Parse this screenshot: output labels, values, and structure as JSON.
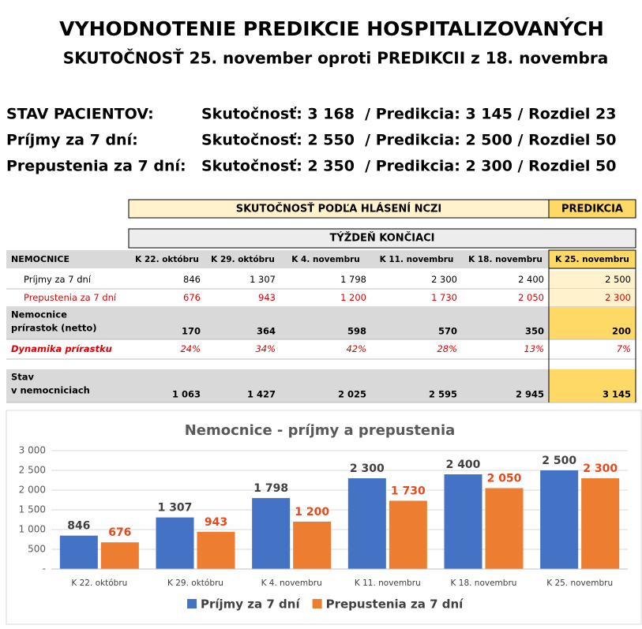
{
  "header": {
    "title": "VYHODNOTENIE PREDIKCIE HOSPITALIZOVANÝCH",
    "subtitle": "SKUTOČNOSŤ 25. november oproti PREDIKCII z 18. novembra"
  },
  "summary": [
    {
      "label": "STAV PACIENTOV:",
      "text": "Skutočnosť: 3 168  / Predikcia: 3 145 / Rozdiel 23"
    },
    {
      "label": "Príjmy za 7 dní:",
      "text": "Skutočnosť: 2 550  / Predikcia: 2 500 / Rozdiel 50"
    },
    {
      "label": "Prepustenia za 7 dní:",
      "text": "Skutočnosť: 2 350  / Predikcia: 2 300 / Rozdiel 50"
    }
  ],
  "table": {
    "group_header": "SKUTOČNOSŤ PODĽA HLÁSENÍ NCZI",
    "prediction_header": "PREDIKCIA",
    "week_header": "TÝŽDEŇ KONČIACI",
    "columns": [
      "NEMOCNICE",
      "K 22. októbru",
      "K 29. októbru",
      "K 4. novembru",
      "K 11. novembru",
      "K 18. novembru",
      "K 25. novembru"
    ],
    "rows": [
      {
        "label": [
          "Príjmy za 7 dní"
        ],
        "cells": [
          "846",
          "1 307",
          "1 798",
          "2 300",
          "2 400",
          "2 500"
        ]
      },
      {
        "label": [
          "Prepustenia za 7 dní"
        ],
        "cells": [
          "676",
          "943",
          "1 200",
          "1 730",
          "2 050",
          "2 300"
        ]
      },
      {
        "label": [
          "Nemocnice",
          "prírastok (netto)"
        ],
        "cells": [
          "170",
          "364",
          "598",
          "570",
          "350",
          "200"
        ]
      },
      {
        "label": [
          "Dynamika prírastku"
        ],
        "cells": [
          "24%",
          "34%",
          "42%",
          "28%",
          "13%",
          "7%"
        ]
      },
      {
        "label": [
          "Stav",
          "v nemocniciach"
        ],
        "cells": [
          "1 063",
          "1 427",
          "2 025",
          "2 595",
          "2 945",
          "3 145"
        ]
      }
    ]
  },
  "chart_data": {
    "type": "bar",
    "title": "Nemocnice - príjmy a prepustenia",
    "categories": [
      "K 22. októbru",
      "K 29. októbru",
      "K 4. novembru",
      "K 11. novembru",
      "K 18. novembru",
      "K 25. novembru"
    ],
    "series": [
      {
        "name": "Príjmy za 7 dní",
        "color": "#4472c4",
        "values": [
          846,
          1307,
          1798,
          2300,
          2400,
          2500
        ],
        "value_labels": [
          "846",
          "1 307",
          "1 798",
          "2 300",
          "2 400",
          "2 500"
        ]
      },
      {
        "name": "Prepustenia za 7 dní",
        "color": "#ed7d31",
        "values": [
          676,
          943,
          1200,
          1730,
          2050,
          2300
        ],
        "value_labels": [
          "676",
          "943",
          "1 200",
          "1 730",
          "2 050",
          "2 300"
        ]
      }
    ],
    "ylim": [
      0,
      3000
    ],
    "yticks": [
      {
        "value": 0,
        "label": "-"
      },
      {
        "value": 500,
        "label": "500"
      },
      {
        "value": 1000,
        "label": "1 000"
      },
      {
        "value": 1500,
        "label": "1 500"
      },
      {
        "value": 2000,
        "label": "2 000"
      },
      {
        "value": 2500,
        "label": "2 500"
      },
      {
        "value": 3000,
        "label": "3 000"
      }
    ],
    "legend": "bottom"
  }
}
